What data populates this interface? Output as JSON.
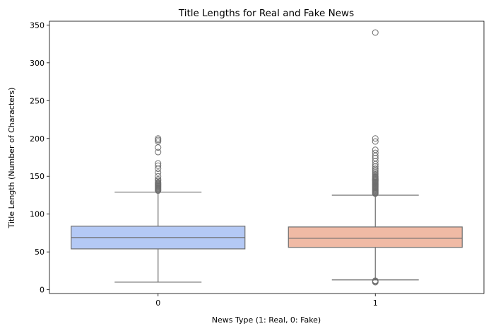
{
  "chart_data": {
    "type": "box",
    "title": "Title Lengths for Real and Fake News",
    "xlabel": "News Type (1: Real, 0: Fake)",
    "ylabel": "Title Length (Number of Characters)",
    "categories": [
      "0",
      "1"
    ],
    "ylim": [
      -5,
      355
    ],
    "yticks": [
      0,
      50,
      100,
      150,
      200,
      250,
      300,
      350
    ],
    "grid": false,
    "legend": "none",
    "boxes": [
      {
        "category": "0",
        "color": "#b4c9f5",
        "whisker_low": 10,
        "q1": 54,
        "median": 69,
        "q3": 84,
        "whisker_high": 129,
        "outliers": [
          131,
          132,
          133,
          134,
          135,
          136,
          137,
          138,
          139,
          140,
          141,
          142,
          144,
          146,
          150,
          155,
          160,
          164,
          167,
          182,
          188,
          196,
          198,
          200
        ]
      },
      {
        "category": "1",
        "color": "#f0baa5",
        "whisker_low": 13,
        "q1": 56,
        "median": 68,
        "q3": 83,
        "whisker_high": 125,
        "outliers": [
          10,
          11,
          12,
          127,
          128,
          129,
          130,
          131,
          132,
          133,
          134,
          135,
          136,
          137,
          138,
          139,
          140,
          141,
          142,
          143,
          144,
          145,
          146,
          147,
          148,
          149,
          150,
          152,
          154,
          156,
          158,
          160,
          163,
          166,
          170,
          174,
          177,
          181,
          185,
          196,
          200,
          340
        ]
      }
    ]
  }
}
